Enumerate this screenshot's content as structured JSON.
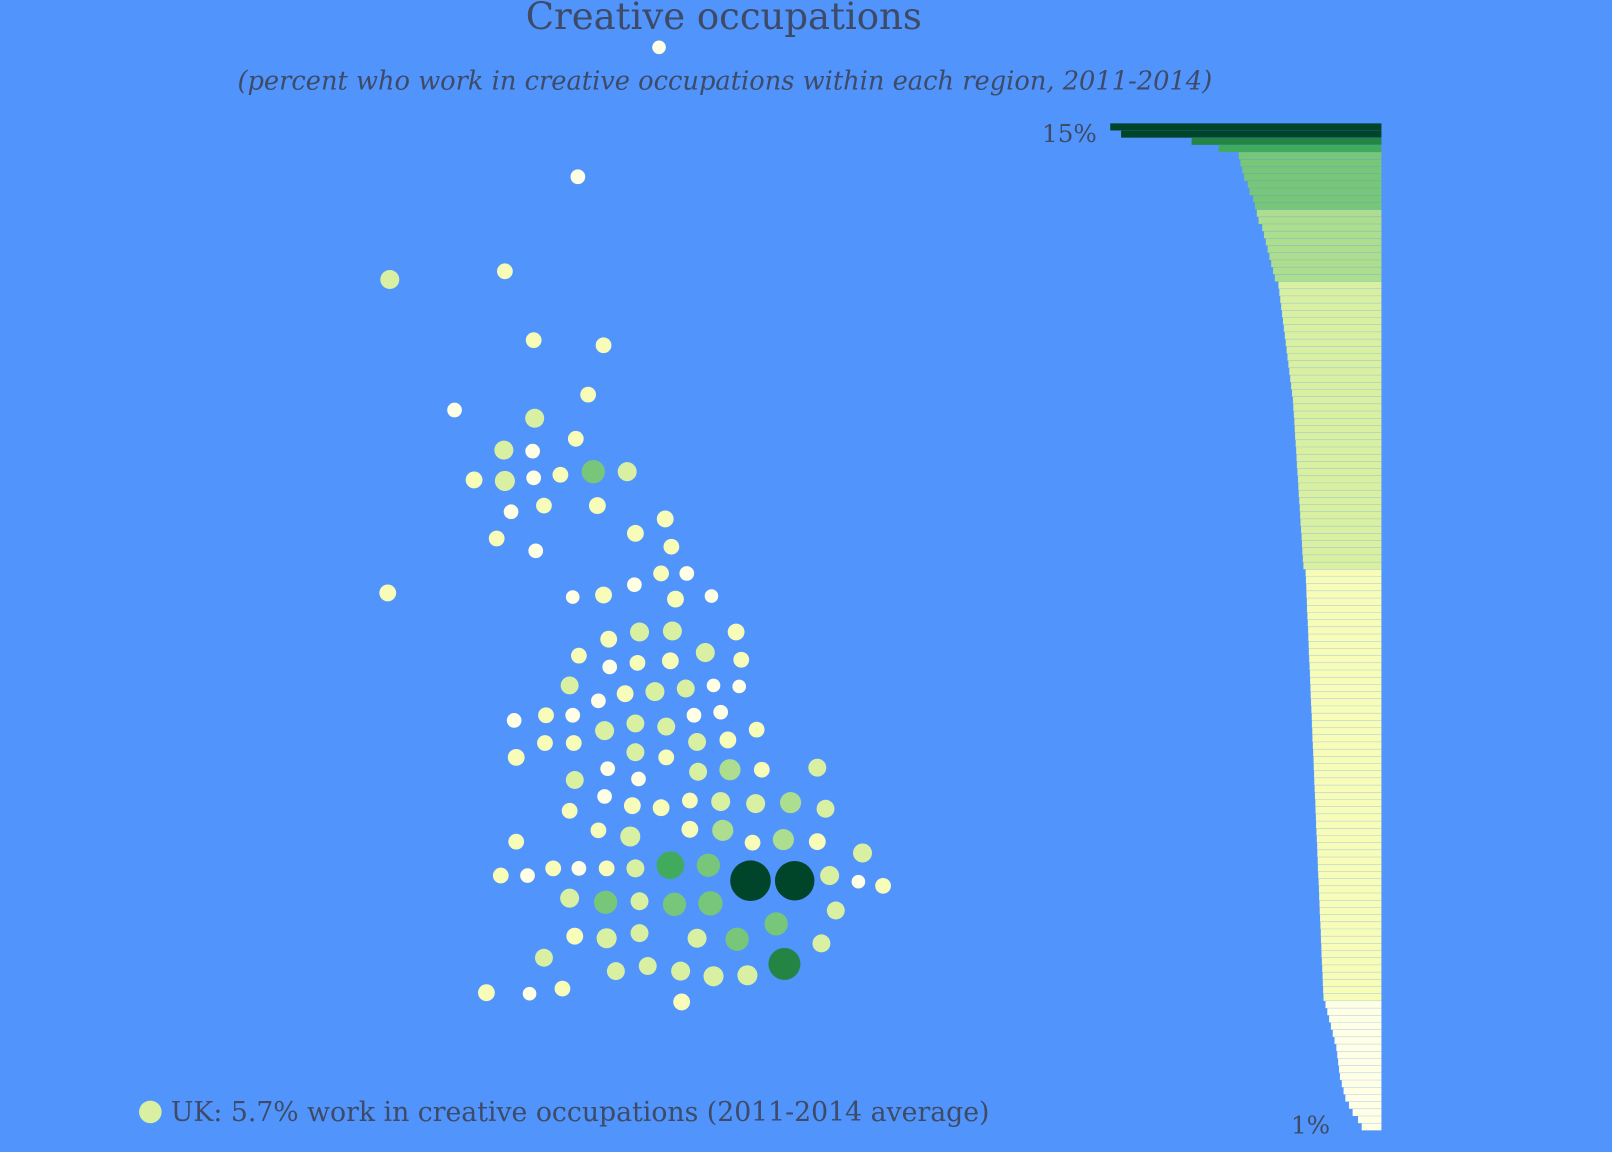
{
  "title": "Creative occupations",
  "subtitle": "(percent who work in creative occupations within each region, 2011-2014)",
  "legend": {
    "label": "UK: 5.7% work in creative occupations (2011-2014 average)",
    "color": "#d9f0a3"
  },
  "scale": {
    "thresholds": [
      3.2,
      4.3,
      5.8,
      7,
      8,
      10,
      12
    ],
    "colors": [
      "#ffffe5",
      "#f7fcb9",
      "#d9f0a3",
      "#addd8e",
      "#78c679",
      "#41ab5d",
      "#238443",
      "#004529"
    ]
  },
  "map": {
    "values": [
      2.5,
      3,
      5,
      3.5,
      3.5,
      3.5,
      3.5,
      3,
      5,
      3.5,
      5,
      3,
      4,
      5.5,
      3,
      3.5,
      7,
      5,
      3.5,
      4,
      3,
      4,
      4,
      3.5,
      3,
      3.5,
      3.5,
      3,
      4,
      2.5,
      4,
      3,
      4,
      2.5,
      4,
      5,
      5,
      4,
      3.5,
      3,
      3.5,
      4,
      5,
      3.5,
      4.5,
      3,
      4,
      5,
      4.5,
      2.5,
      2.5,
      3,
      3.5,
      3,
      5,
      4.5,
      4.5,
      3,
      3,
      3.5,
      3.5,
      3.5,
      4.5,
      3.5,
      4.5,
      4,
      4,
      4.5,
      3,
      3,
      4.5,
      6,
      3.5,
      4.5,
      3,
      4,
      4,
      3.5,
      5,
      5,
      6,
      4.5,
      3.5,
      3.5,
      5.5,
      4,
      6,
      3.5,
      6,
      4,
      5,
      3.5,
      3.5,
      3,
      3.5,
      3,
      3.5,
      4.5,
      9,
      7,
      15,
      14.5,
      5,
      2.5,
      3.5,
      5,
      7,
      4.5,
      7,
      7.5,
      4.5,
      4,
      5.5,
      4.5,
      5,
      7,
      7,
      4.5,
      4.5,
      4.5,
      4.5,
      5,
      5.5,
      5.5,
      11,
      4,
      2.5,
      3.5,
      4
    ]
  },
  "bars": {
    "xlim": [
      0,
      15
    ],
    "top_label": "15%",
    "bottom_label": "1%",
    "values": [
      15,
      14.4,
      10.5,
      9.0,
      7.9,
      7.8,
      7.7,
      7.6,
      7.4,
      7.3,
      7.1,
      7.0,
      6.9,
      6.8,
      6.6,
      6.5,
      6.4,
      6.3,
      6.2,
      6.1,
      6.0,
      5.9,
      5.7,
      5.65,
      5.6,
      5.55,
      5.5,
      5.45,
      5.4,
      5.35,
      5.3,
      5.25,
      5.2,
      5.15,
      5.1,
      5.05,
      5.0,
      4.95,
      4.9,
      4.88,
      4.85,
      4.82,
      4.8,
      4.78,
      4.75,
      4.72,
      4.7,
      4.68,
      4.65,
      4.62,
      4.6,
      4.58,
      4.55,
      4.52,
      4.5,
      4.48,
      4.45,
      4.42,
      4.4,
      4.38,
      4.35,
      4.32,
      4.2,
      4.18,
      4.16,
      4.15,
      4.13,
      4.12,
      4.1,
      4.08,
      4.06,
      4.05,
      4.03,
      4.02,
      4.0,
      3.98,
      3.96,
      3.95,
      3.93,
      3.92,
      3.9,
      3.88,
      3.86,
      3.85,
      3.83,
      3.82,
      3.8,
      3.78,
      3.76,
      3.75,
      3.73,
      3.72,
      3.7,
      3.68,
      3.66,
      3.65,
      3.63,
      3.62,
      3.6,
      3.58,
      3.56,
      3.55,
      3.53,
      3.52,
      3.5,
      3.48,
      3.46,
      3.45,
      3.43,
      3.42,
      3.4,
      3.38,
      3.36,
      3.35,
      3.33,
      3.32,
      3.3,
      3.28,
      3.26,
      3.25,
      3.23,
      3.21,
      3.1,
      3.0,
      2.9,
      2.8,
      2.7,
      2.6,
      2.5,
      2.45,
      2.4,
      2.35,
      2.3,
      2.2,
      2.1,
      2.0,
      1.8,
      1.6,
      1.3,
      1.1
    ]
  }
}
